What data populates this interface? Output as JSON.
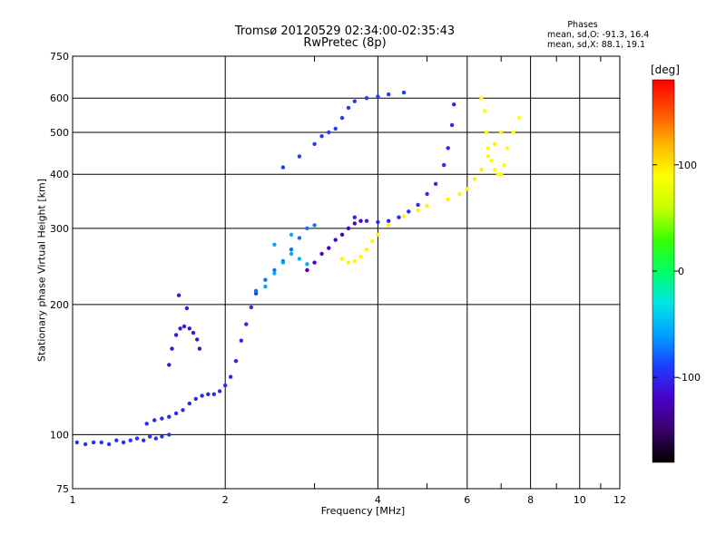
{
  "title": "Tromsø 20120529 02:34:00-02:35:43",
  "subtitle": "RwPretec (8p)",
  "stats": {
    "heading": "Phases",
    "line1": "mean, sd,O: -91.3, 16.4",
    "line2": "mean, sd,X:  88.1, 19.1"
  },
  "colorbar": {
    "unit": "[deg]",
    "ticks": [
      "100",
      "0",
      "-100"
    ],
    "tick_values": [
      100,
      0,
      -100
    ],
    "range": [
      -180,
      180
    ],
    "palette": [
      "#000000",
      "#3a0066",
      "#4b00c8",
      "#1e3cff",
      "#00a0ff",
      "#00e6e6",
      "#00ff64",
      "#3cff00",
      "#c8ff00",
      "#ffff00",
      "#ffb400",
      "#ff5000",
      "#ff0000"
    ]
  },
  "chart_data": {
    "type": "scatter",
    "title": "Tromsø 20120529 02:34:00-02:35:43",
    "subtitle": "RwPretec (8p)",
    "xlabel": "Frequency [MHz]",
    "ylabel": "Stationary phase Virtual Height [km]",
    "xscale": "log",
    "yscale": "log",
    "xlim": [
      1,
      12
    ],
    "ylim": [
      75,
      750
    ],
    "xticks": [
      1,
      2,
      4,
      6,
      8,
      10,
      12
    ],
    "yticks": [
      75,
      100,
      200,
      300,
      400,
      500,
      600,
      750
    ],
    "grid": true,
    "color_variable": "phase (deg)",
    "series": [
      {
        "phase": -95,
        "points": [
          [
            1.02,
            96
          ],
          [
            1.06,
            95
          ],
          [
            1.1,
            96
          ],
          [
            1.14,
            96
          ],
          [
            1.18,
            95
          ],
          [
            1.22,
            97
          ],
          [
            1.26,
            96
          ],
          [
            1.3,
            97
          ],
          [
            1.34,
            98
          ],
          [
            1.38,
            97
          ],
          [
            1.42,
            99
          ],
          [
            1.46,
            98
          ],
          [
            1.5,
            99
          ],
          [
            1.55,
            100
          ]
        ]
      },
      {
        "phase": -100,
        "points": [
          [
            1.4,
            106
          ],
          [
            1.45,
            108
          ],
          [
            1.5,
            109
          ],
          [
            1.55,
            110
          ],
          [
            1.6,
            112
          ],
          [
            1.65,
            114
          ],
          [
            1.7,
            118
          ],
          [
            1.75,
            121
          ],
          [
            1.8,
            123
          ],
          [
            1.85,
            124
          ],
          [
            1.9,
            124
          ],
          [
            1.95,
            126
          ],
          [
            2.0,
            130
          ],
          [
            2.05,
            136
          ],
          [
            2.1,
            148
          ],
          [
            2.15,
            165
          ],
          [
            2.2,
            180
          ],
          [
            2.25,
            197
          ],
          [
            2.3,
            212
          ]
        ]
      },
      {
        "phase": -110,
        "points": [
          [
            1.55,
            145
          ],
          [
            1.57,
            158
          ],
          [
            1.6,
            170
          ],
          [
            1.63,
            176
          ],
          [
            1.66,
            178
          ],
          [
            1.7,
            176
          ],
          [
            1.73,
            172
          ],
          [
            1.76,
            166
          ],
          [
            1.78,
            158
          ],
          [
            1.62,
            210
          ],
          [
            1.68,
            196
          ]
        ]
      },
      {
        "phase": -75,
        "points": [
          [
            2.3,
            215
          ],
          [
            2.4,
            228
          ],
          [
            2.5,
            240
          ],
          [
            2.6,
            252
          ],
          [
            2.7,
            268
          ],
          [
            2.8,
            285
          ],
          [
            2.9,
            300
          ],
          [
            3.0,
            305
          ]
        ]
      },
      {
        "phase": -55,
        "points": [
          [
            2.4,
            220
          ],
          [
            2.5,
            236
          ],
          [
            2.6,
            250
          ],
          [
            2.7,
            262
          ],
          [
            2.8,
            255
          ],
          [
            2.9,
            248
          ],
          [
            2.5,
            275
          ],
          [
            2.7,
            290
          ]
        ]
      },
      {
        "phase": -120,
        "points": [
          [
            2.9,
            240
          ],
          [
            3.0,
            250
          ],
          [
            3.1,
            262
          ],
          [
            3.2,
            270
          ],
          [
            3.3,
            282
          ],
          [
            3.4,
            290
          ],
          [
            3.5,
            300
          ],
          [
            3.6,
            308
          ],
          [
            3.7,
            312
          ]
        ]
      },
      {
        "phase": -100,
        "points": [
          [
            3.6,
            318
          ],
          [
            3.8,
            312
          ],
          [
            4.0,
            310
          ],
          [
            4.2,
            312
          ],
          [
            4.4,
            318
          ],
          [
            4.6,
            328
          ],
          [
            4.8,
            340
          ],
          [
            5.0,
            360
          ],
          [
            5.2,
            380
          ],
          [
            5.4,
            420
          ],
          [
            5.5,
            460
          ],
          [
            5.6,
            520
          ],
          [
            5.65,
            580
          ]
        ]
      },
      {
        "phase": 95,
        "points": [
          [
            3.4,
            255
          ],
          [
            3.5,
            250
          ],
          [
            3.6,
            252
          ],
          [
            3.7,
            258
          ],
          [
            3.8,
            268
          ],
          [
            3.9,
            280
          ],
          [
            4.0,
            290
          ],
          [
            4.2,
            305
          ],
          [
            4.5,
            320
          ],
          [
            4.8,
            330
          ],
          [
            5.0,
            338
          ],
          [
            5.5,
            350
          ],
          [
            5.8,
            360
          ],
          [
            6.0,
            370
          ],
          [
            6.2,
            390
          ],
          [
            6.4,
            410
          ],
          [
            6.6,
            440
          ],
          [
            6.8,
            470
          ],
          [
            7.0,
            500
          ]
        ]
      },
      {
        "phase": -90,
        "points": [
          [
            2.6,
            415
          ],
          [
            2.8,
            440
          ],
          [
            3.0,
            470
          ],
          [
            3.1,
            490
          ],
          [
            3.2,
            500
          ],
          [
            3.3,
            510
          ],
          [
            3.4,
            540
          ],
          [
            3.5,
            570
          ],
          [
            3.6,
            590
          ],
          [
            3.8,
            600
          ],
          [
            4.0,
            605
          ],
          [
            4.2,
            612
          ],
          [
            4.5,
            618
          ]
        ]
      },
      {
        "phase": 90,
        "points": [
          [
            6.4,
            600
          ],
          [
            6.5,
            560
          ],
          [
            6.55,
            500
          ],
          [
            6.6,
            460
          ],
          [
            6.7,
            430
          ],
          [
            6.8,
            410
          ],
          [
            6.9,
            400
          ],
          [
            7.0,
            400
          ],
          [
            7.1,
            420
          ],
          [
            7.2,
            460
          ],
          [
            7.4,
            500
          ],
          [
            7.6,
            540
          ]
        ]
      }
    ]
  }
}
